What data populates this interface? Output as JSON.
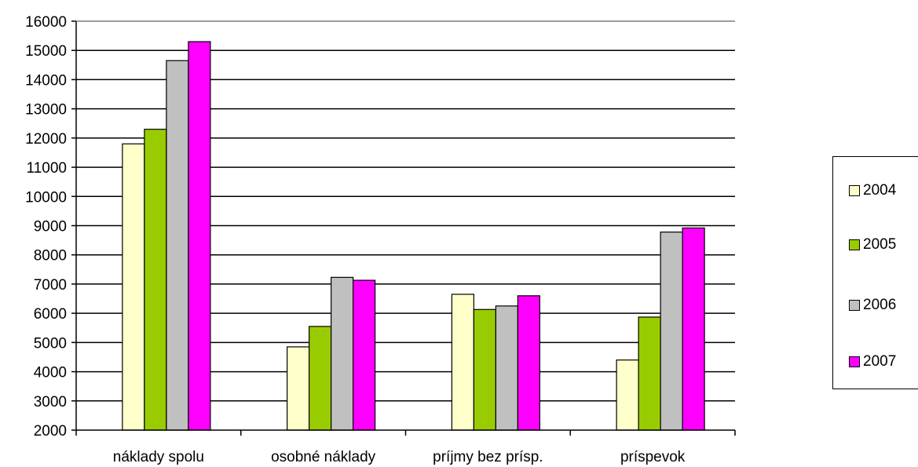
{
  "chart_data": {
    "type": "bar",
    "categories": [
      "náklady spolu",
      "osobné náklady",
      "príjmy bez prísp.",
      "príspevok"
    ],
    "series": [
      {
        "name": "2004",
        "values": [
          11800,
          4850,
          6650,
          4400
        ]
      },
      {
        "name": "2005",
        "values": [
          12300,
          5550,
          6130,
          5870
        ]
      },
      {
        "name": "2006",
        "values": [
          14650,
          7230,
          6250,
          8780
        ]
      },
      {
        "name": "2007",
        "values": [
          15300,
          7130,
          6600,
          8920
        ]
      }
    ],
    "colors": [
      "#ffffcc",
      "#99cc00",
      "#c0c0c0",
      "#ff00ff"
    ],
    "ylim": [
      2000,
      16000
    ],
    "yticks": [
      "2000",
      "3000",
      "4000",
      "5000",
      "6000",
      "7000",
      "8000",
      "9000",
      "10000",
      "11000",
      "12000",
      "13000",
      "14000",
      "15000",
      "16000"
    ],
    "grid": true,
    "legend_position": "right"
  }
}
